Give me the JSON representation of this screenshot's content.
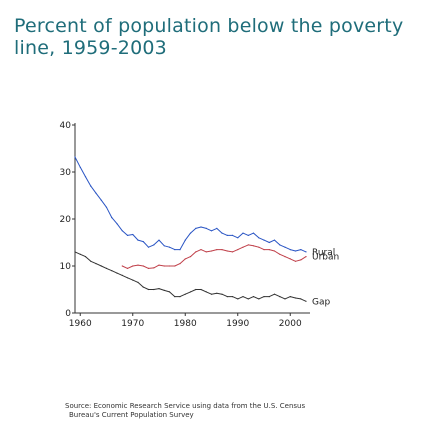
{
  "title_lines": [
    "Percent of population below the poverty",
    "line, 1959-2003"
  ],
  "source_lines": [
    "Source: Economic Research Service using data from the U.S. Census",
    "Bureau's Current Population Survey"
  ],
  "colors": {
    "title": "#1f6d7a",
    "rural": "#2a55c4",
    "urban": "#c0404a",
    "gap": "#333333",
    "axis": "#333333"
  },
  "chart_data": {
    "type": "line",
    "title": "Percent of population below the poverty line, 1959-2003",
    "xlabel": "",
    "ylabel": "",
    "xlim": [
      1959,
      2003
    ],
    "ylim": [
      0,
      40
    ],
    "x_ticks": [
      1960,
      1970,
      1980,
      1990,
      2000
    ],
    "x_tick_labels": [
      "1960",
      "1970",
      "1980",
      "1990",
      "2000"
    ],
    "y_ticks": [
      0,
      10,
      20,
      30,
      40
    ],
    "y_tick_labels": [
      "0",
      "10",
      "20",
      "30",
      "40"
    ],
    "grid": false,
    "series": [
      {
        "name": "Rural",
        "x": [
          1959,
          1960,
          1961,
          1962,
          1963,
          1964,
          1965,
          1966,
          1967,
          1968,
          1969,
          1970,
          1971,
          1972,
          1973,
          1974,
          1975,
          1976,
          1977,
          1978,
          1979,
          1980,
          1981,
          1982,
          1983,
          1984,
          1985,
          1986,
          1987,
          1988,
          1989,
          1990,
          1991,
          1992,
          1993,
          1994,
          1995,
          1996,
          1997,
          1998,
          1999,
          2000,
          2001,
          2002,
          2003
        ],
        "y": [
          33.2,
          31.0,
          29.0,
          27.0,
          25.5,
          24.0,
          22.5,
          20.3,
          19.0,
          17.5,
          16.5,
          16.7,
          15.5,
          15.2,
          14.0,
          14.5,
          15.5,
          14.3,
          14.0,
          13.5,
          13.5,
          15.5,
          17.0,
          18.0,
          18.3,
          18.0,
          17.5,
          18.0,
          17.0,
          16.5,
          16.5,
          16.0,
          17.0,
          16.5,
          17.0,
          16.0,
          15.5,
          15.0,
          15.5,
          14.5,
          14.0,
          13.5,
          13.2,
          13.5,
          13.0
        ],
        "label_end": "Rural"
      },
      {
        "name": "Urban",
        "x": [
          1968,
          1969,
          1970,
          1971,
          1972,
          1973,
          1974,
          1975,
          1976,
          1977,
          1978,
          1979,
          1980,
          1981,
          1982,
          1983,
          1984,
          1985,
          1986,
          1987,
          1988,
          1989,
          1990,
          1991,
          1992,
          1993,
          1994,
          1995,
          1996,
          1997,
          1998,
          1999,
          2000,
          2001,
          2002,
          2003
        ],
        "y": [
          10.0,
          9.5,
          10.0,
          10.2,
          10.0,
          9.5,
          9.6,
          10.2,
          10.0,
          10.0,
          10.0,
          10.5,
          11.5,
          12.0,
          13.0,
          13.5,
          13.0,
          13.2,
          13.5,
          13.5,
          13.2,
          13.0,
          13.5,
          14.0,
          14.5,
          14.3,
          14.0,
          13.5,
          13.5,
          13.2,
          12.5,
          12.0,
          11.5,
          11.0,
          11.3,
          12.0
        ],
        "label_end": "Urban"
      },
      {
        "name": "Gap",
        "x": [
          1959,
          1960,
          1961,
          1962,
          1963,
          1964,
          1965,
          1966,
          1967,
          1968,
          1969,
          1970,
          1971,
          1972,
          1973,
          1974,
          1975,
          1976,
          1977,
          1978,
          1979,
          1980,
          1981,
          1982,
          1983,
          1984,
          1985,
          1986,
          1987,
          1988,
          1989,
          1990,
          1991,
          1992,
          1993,
          1994,
          1995,
          1996,
          1997,
          1998,
          1999,
          2000,
          2001,
          2002,
          2003
        ],
        "y": [
          13.0,
          12.5,
          12.0,
          11.0,
          10.5,
          10.0,
          9.5,
          9.0,
          8.5,
          8.0,
          7.5,
          7.0,
          6.5,
          5.5,
          5.0,
          5.0,
          5.2,
          4.8,
          4.5,
          3.5,
          3.5,
          4.0,
          4.5,
          5.0,
          5.0,
          4.5,
          4.0,
          4.2,
          4.0,
          3.5,
          3.5,
          3.0,
          3.5,
          3.0,
          3.5,
          3.0,
          3.5,
          3.5,
          4.0,
          3.5,
          3.0,
          3.5,
          3.2,
          3.0,
          2.5
        ],
        "label_end": "Gap"
      }
    ]
  }
}
